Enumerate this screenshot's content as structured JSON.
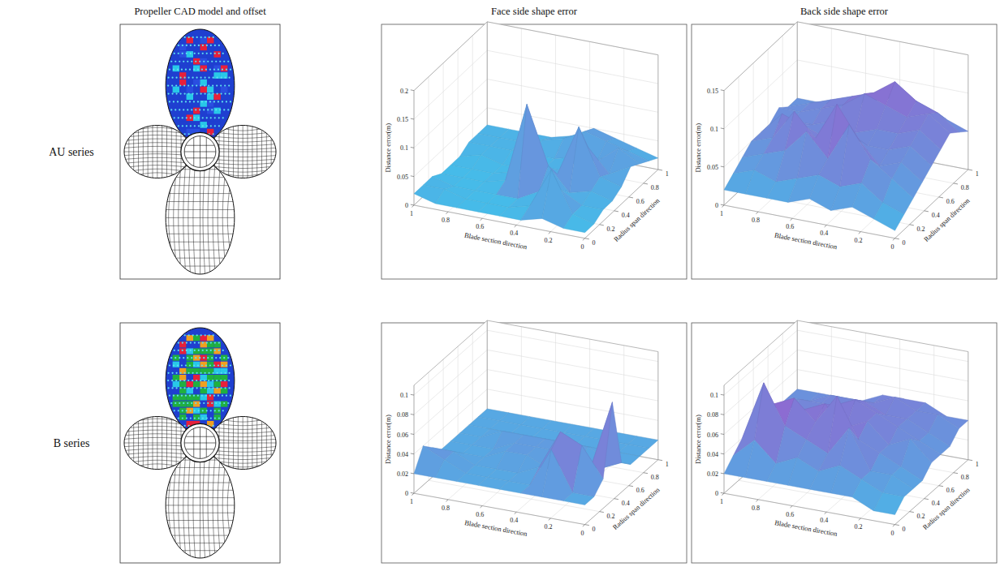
{
  "column_titles": [
    "Propeller CAD model and offset",
    "Face side shape error",
    "Back side shape error"
  ],
  "row_labels": [
    "AU series",
    "B series"
  ],
  "chart_data": [
    {
      "type": "surface",
      "xlabel": "Blade section direction",
      "ylabel": "Radius span direction",
      "zlabel": "Distance error(m)",
      "x": [
        0,
        0.125,
        0.25,
        0.375,
        0.5,
        0.625,
        0.75,
        0.875,
        1
      ],
      "y": [
        0,
        0.125,
        0.25,
        0.375,
        0.5,
        0.625,
        0.75,
        0.875,
        1
      ],
      "z": [
        [
          0.01,
          0.01,
          0.02,
          0.01,
          0.01,
          0.01,
          0.01,
          0.01,
          0.02
        ],
        [
          0.01,
          0.02,
          0.09,
          0.02,
          0.01,
          0.01,
          0.01,
          0.02,
          0.02
        ],
        [
          0.02,
          0.02,
          0.04,
          0.03,
          0.01,
          0.01,
          0.01,
          0.01,
          0.02
        ],
        [
          0.02,
          0.03,
          0.02,
          0.06,
          0.16,
          0.02,
          0.01,
          0.01,
          0.01
        ],
        [
          0.03,
          0.04,
          0.12,
          0.03,
          0.05,
          0.02,
          0.01,
          0.01,
          0.01
        ],
        [
          0.05,
          0.03,
          0.07,
          0.02,
          0.02,
          0.01,
          0.01,
          0.02,
          0.01
        ],
        [
          0.04,
          0.06,
          0.03,
          0.03,
          0.02,
          0.02,
          0.02,
          0.02,
          0.02
        ],
        [
          0.03,
          0.04,
          0.05,
          0.06,
          0.04,
          0.03,
          0.02,
          0.02,
          0.02
        ],
        [
          0.02,
          0.03,
          0.04,
          0.05,
          0.03,
          0.02,
          0.02,
          0.02,
          0.02
        ]
      ],
      "xlim": [
        0,
        1
      ],
      "ylim": [
        0,
        1
      ],
      "zlim": [
        0,
        0.2
      ],
      "xticks": [
        0,
        0.2,
        0.4,
        0.6,
        0.8,
        1
      ],
      "yticks": [
        0,
        0.2,
        0.4,
        0.6,
        0.8,
        1
      ],
      "zticks": [
        0,
        0.05,
        0.1,
        0.15,
        0.2
      ],
      "grid": true
    },
    {
      "type": "surface",
      "xlabel": "Blade section direction",
      "ylabel": "Radius span direction",
      "zlabel": "Distance error(m)",
      "x": [
        0,
        0.125,
        0.25,
        0.375,
        0.5,
        0.625,
        0.75,
        0.875,
        1
      ],
      "y": [
        0,
        0.125,
        0.25,
        0.375,
        0.5,
        0.625,
        0.75,
        0.875,
        1
      ],
      "z": [
        [
          0.01,
          0.02,
          0.03,
          0.02,
          0.03,
          0.02,
          0.02,
          0.02,
          0.02
        ],
        [
          0.02,
          0.03,
          0.05,
          0.04,
          0.05,
          0.04,
          0.03,
          0.04,
          0.03
        ],
        [
          0.03,
          0.05,
          0.07,
          0.11,
          0.06,
          0.09,
          0.06,
          0.05,
          0.04
        ],
        [
          0.04,
          0.06,
          0.05,
          0.08,
          0.12,
          0.07,
          0.1,
          0.06,
          0.05
        ],
        [
          0.05,
          0.07,
          0.06,
          0.06,
          0.07,
          0.06,
          0.07,
          0.08,
          0.05
        ],
        [
          0.06,
          0.08,
          0.07,
          0.07,
          0.06,
          0.07,
          0.06,
          0.06,
          0.05
        ],
        [
          0.07,
          0.09,
          0.08,
          0.09,
          0.1,
          0.08,
          0.07,
          0.06,
          0.06
        ],
        [
          0.06,
          0.08,
          0.09,
          0.11,
          0.09,
          0.08,
          0.07,
          0.06,
          0.05
        ],
        [
          0.05,
          0.06,
          0.07,
          0.08,
          0.07,
          0.06,
          0.05,
          0.05,
          0.05
        ]
      ],
      "xlim": [
        0,
        1
      ],
      "ylim": [
        0,
        1
      ],
      "zlim": [
        0,
        0.15
      ],
      "xticks": [
        0,
        0.2,
        0.4,
        0.6,
        0.8,
        1
      ],
      "yticks": [
        0,
        0.2,
        0.4,
        0.6,
        0.8,
        1
      ],
      "zticks": [
        0,
        0.05,
        0.1,
        0.15
      ],
      "grid": true
    },
    {
      "type": "surface",
      "xlabel": "Blade section direction",
      "ylabel": "Radius span direction",
      "zlabel": "Distance error(m)",
      "x": [
        0,
        0.125,
        0.25,
        0.375,
        0.5,
        0.625,
        0.75,
        0.875,
        1
      ],
      "y": [
        0,
        0.125,
        0.25,
        0.375,
        0.5,
        0.625,
        0.75,
        0.875,
        1
      ],
      "z": [
        [
          0.02,
          0.02,
          0.02,
          0.02,
          0.02,
          0.02,
          0.02,
          0.02,
          0.02
        ],
        [
          0.02,
          0.02,
          0.06,
          0.02,
          0.02,
          0.02,
          0.02,
          0.03,
          0.04
        ],
        [
          0.03,
          0.06,
          0.07,
          0.03,
          0.02,
          0.02,
          0.02,
          0.03,
          0.03
        ],
        [
          0.1,
          0.03,
          0.03,
          0.02,
          0.03,
          0.03,
          0.02,
          0.02,
          0.02
        ],
        [
          0.03,
          0.02,
          0.02,
          0.03,
          0.03,
          0.03,
          0.02,
          0.02,
          0.02
        ],
        [
          0.02,
          0.02,
          0.03,
          0.03,
          0.03,
          0.03,
          0.03,
          0.02,
          0.02
        ],
        [
          0.02,
          0.02,
          0.02,
          0.02,
          0.02,
          0.02,
          0.02,
          0.02,
          0.02
        ],
        [
          0.02,
          0.02,
          0.02,
          0.02,
          0.02,
          0.02,
          0.02,
          0.02,
          0.02
        ],
        [
          0.02,
          0.02,
          0.02,
          0.02,
          0.02,
          0.02,
          0.02,
          0.02,
          0.02
        ]
      ],
      "xlim": [
        0,
        1
      ],
      "ylim": [
        0,
        1
      ],
      "zlim": [
        0,
        0.11
      ],
      "xticks": [
        0,
        0.2,
        0.4,
        0.6,
        0.8,
        1
      ],
      "yticks": [
        0,
        0.2,
        0.4,
        0.6,
        0.8,
        1
      ],
      "zticks": [
        0,
        0.02,
        0.04,
        0.06,
        0.08,
        0.1
      ],
      "grid": true
    },
    {
      "type": "surface",
      "xlabel": "Blade section direction",
      "ylabel": "Radius span direction",
      "zlabel": "Distance error(m)",
      "x": [
        0,
        0.125,
        0.25,
        0.375,
        0.5,
        0.625,
        0.75,
        0.875,
        1
      ],
      "y": [
        0,
        0.125,
        0.25,
        0.375,
        0.5,
        0.625,
        0.75,
        0.875,
        1
      ],
      "z": [
        [
          0.01,
          0.01,
          0.02,
          0.02,
          0.02,
          0.02,
          0.02,
          0.02,
          0.02
        ],
        [
          0.02,
          0.02,
          0.03,
          0.04,
          0.03,
          0.04,
          0.03,
          0.05,
          0.03
        ],
        [
          0.02,
          0.03,
          0.03,
          0.07,
          0.04,
          0.05,
          0.06,
          0.1,
          0.04
        ],
        [
          0.02,
          0.03,
          0.04,
          0.05,
          0.09,
          0.06,
          0.08,
          0.07,
          0.04
        ],
        [
          0.03,
          0.05,
          0.04,
          0.06,
          0.05,
          0.07,
          0.06,
          0.06,
          0.05
        ],
        [
          0.03,
          0.04,
          0.05,
          0.06,
          0.07,
          0.06,
          0.05,
          0.05,
          0.05
        ],
        [
          0.03,
          0.04,
          0.05,
          0.05,
          0.06,
          0.05,
          0.05,
          0.05,
          0.04
        ],
        [
          0.04,
          0.05,
          0.05,
          0.06,
          0.05,
          0.05,
          0.05,
          0.04,
          0.04
        ],
        [
          0.04,
          0.04,
          0.05,
          0.05,
          0.05,
          0.04,
          0.04,
          0.04,
          0.04
        ]
      ],
      "xlim": [
        0,
        1
      ],
      "ylim": [
        0,
        1
      ],
      "zlim": [
        0,
        0.11
      ],
      "xticks": [
        0,
        0.2,
        0.4,
        0.6,
        0.8,
        1
      ],
      "yticks": [
        0,
        0.2,
        0.4,
        0.6,
        0.8,
        1
      ],
      "zticks": [
        0,
        0.02,
        0.04,
        0.06,
        0.08,
        0.1
      ],
      "grid": true
    }
  ]
}
